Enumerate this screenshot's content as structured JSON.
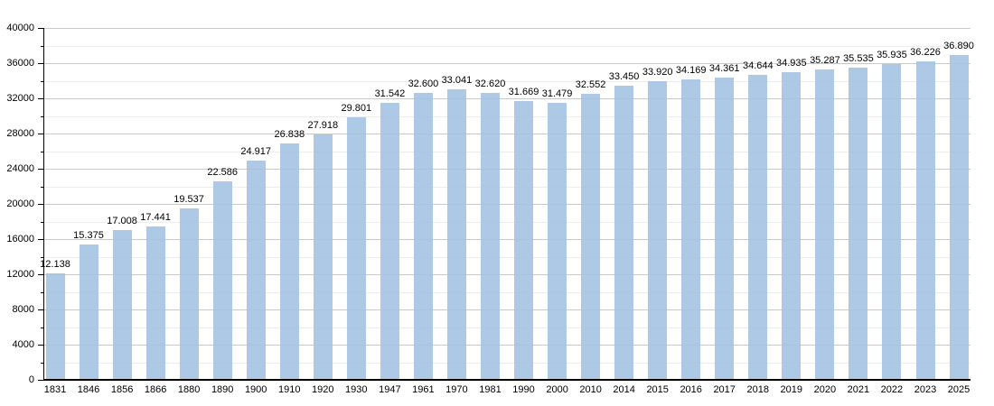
{
  "chart_data": {
    "type": "bar",
    "title": "",
    "xlabel": "",
    "ylabel": "",
    "categories": [
      "1831",
      "1846",
      "1856",
      "1866",
      "1880",
      "1890",
      "1900",
      "1910",
      "1920",
      "1930",
      "1947",
      "1961",
      "1970",
      "1981",
      "1990",
      "2000",
      "2010",
      "2014",
      "2015",
      "2016",
      "2017",
      "2018",
      "2019",
      "2020",
      "2021",
      "2022",
      "2023",
      "2025"
    ],
    "values": [
      12138,
      15375,
      17008,
      17441,
      19537,
      22586,
      24917,
      26838,
      27918,
      29801,
      31542,
      32600,
      33041,
      32620,
      31669,
      31479,
      32552,
      33450,
      33920,
      34169,
      34361,
      34644,
      34935,
      35287,
      35535,
      35935,
      36226,
      36890
    ],
    "value_labels": [
      "12.138",
      "15.375",
      "17.008",
      "17.441",
      "19.537",
      "22.586",
      "24.917",
      "26.838",
      "27.918",
      "29.801",
      "31.542",
      "32.600",
      "33.041",
      "32.620",
      "31.669",
      "31.479",
      "32.552",
      "33.450",
      "33.920",
      "34.169",
      "34.361",
      "34.644",
      "34.935",
      "35.287",
      "35.535",
      "35.935",
      "36.226",
      "36.890"
    ],
    "ylim": [
      0,
      40000
    ],
    "ytick_major_step": 4000,
    "ytick_minor_step": 2000,
    "ytick_labels": [
      "0",
      "4000",
      "8000",
      "12000",
      "16000",
      "20000",
      "24000",
      "28000",
      "32000",
      "36000",
      "40000"
    ],
    "grid": "horizontal",
    "legend": "none",
    "colors": {
      "bar": "#aec9e6",
      "bar_fill_rgba": "rgba(163,194,227,0.88)",
      "major_grid": "#c9c9c9",
      "minor_grid": "#ececec",
      "axis": "#000000",
      "text": "#000000",
      "background": "#ffffff"
    }
  }
}
